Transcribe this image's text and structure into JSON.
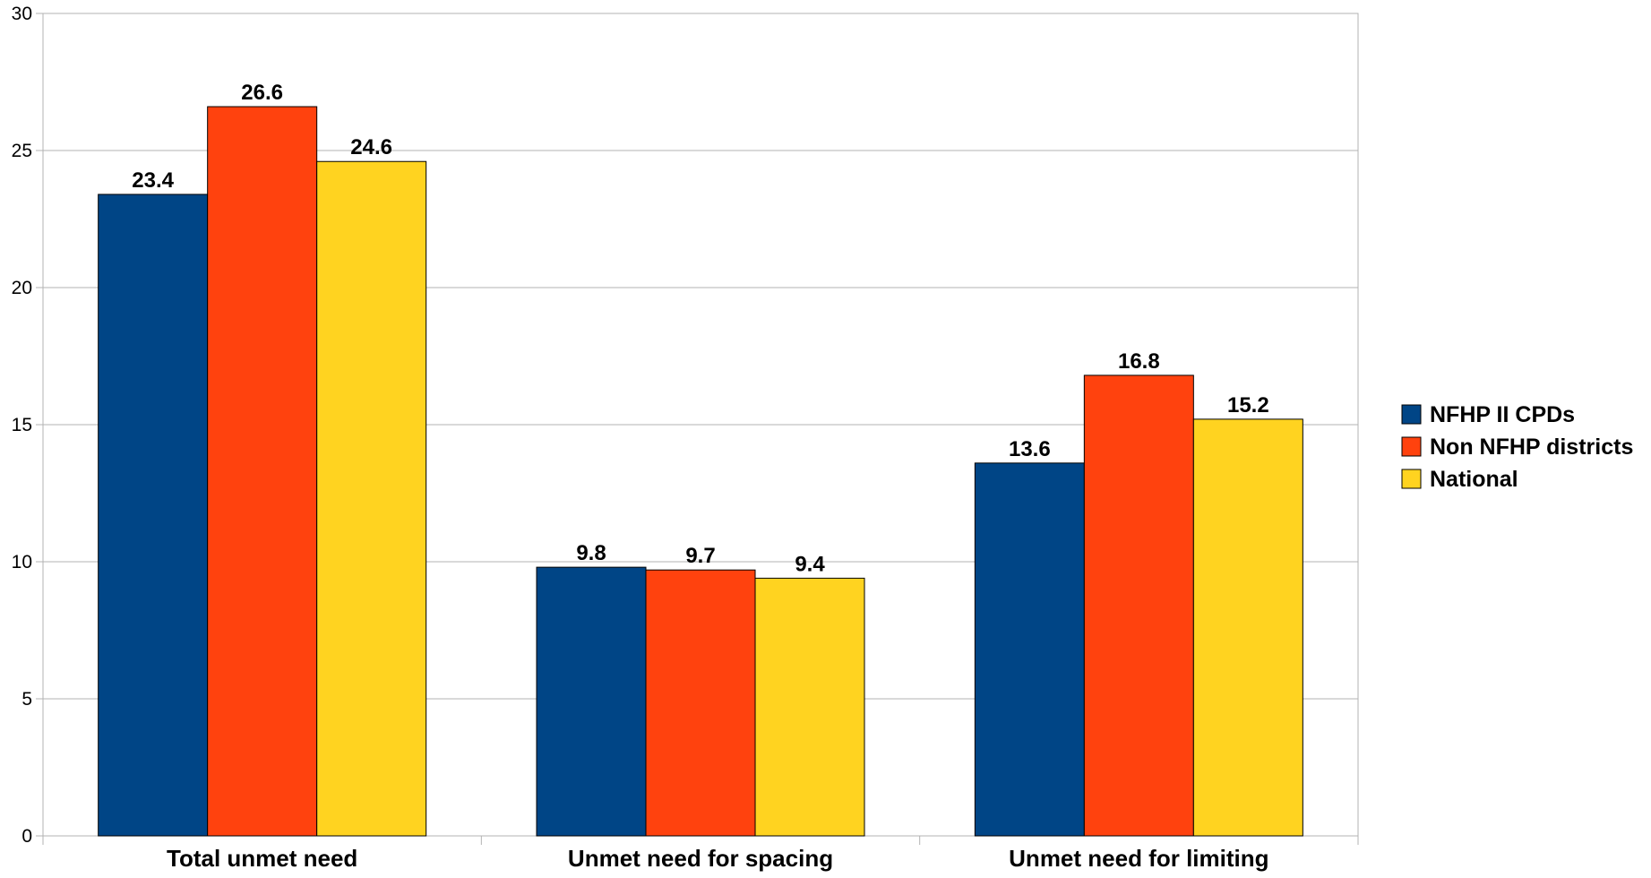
{
  "chart_data": {
    "type": "bar",
    "title": "",
    "xlabel": "",
    "ylabel": "",
    "ylim": [
      0,
      30
    ],
    "yticks": [
      0,
      5,
      10,
      15,
      20,
      25,
      30
    ],
    "grid": true,
    "legend_position": "right",
    "categories": [
      "Total unmet need",
      "Unmet need for spacing",
      "Unmet need for limiting"
    ],
    "series": [
      {
        "name": "NFHP II CPDs",
        "color": "#004586",
        "values": [
          23.4,
          9.8,
          13.6
        ],
        "labels": [
          "23.4",
          "9.8",
          "13.6"
        ]
      },
      {
        "name": "Non NFHP districts",
        "color": "#ff420e",
        "values": [
          26.6,
          9.7,
          16.8
        ],
        "labels": [
          "26.6",
          "9.7",
          "16.8"
        ]
      },
      {
        "name": "National",
        "color": "#ffd320",
        "values": [
          24.6,
          9.4,
          15.2
        ],
        "labels": [
          "24.6",
          "9.4",
          "15.2"
        ]
      }
    ]
  }
}
